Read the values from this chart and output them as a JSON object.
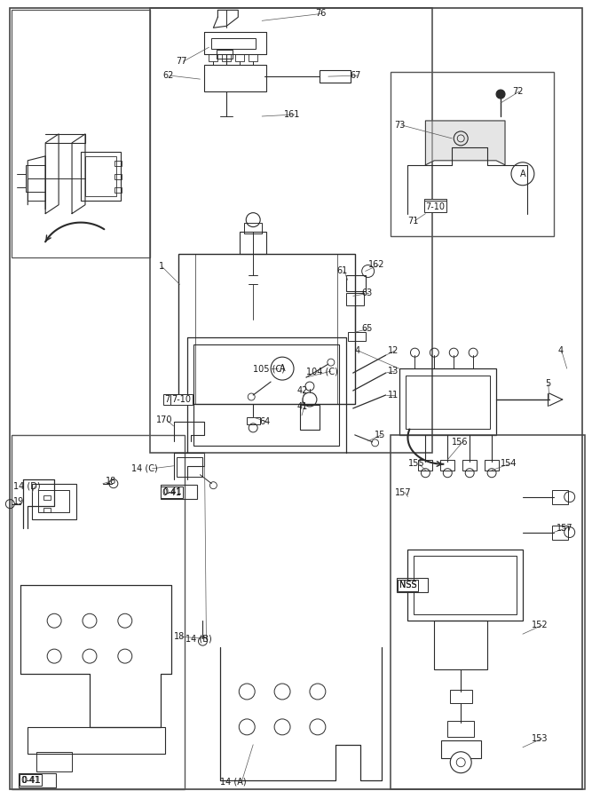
{
  "bg_color": "#ffffff",
  "line_color": "#2a2a2a",
  "fig_width": 6.67,
  "fig_height": 9.0,
  "dpi": 100,
  "xlim": [
    0,
    667
  ],
  "ylim": [
    0,
    900
  ]
}
